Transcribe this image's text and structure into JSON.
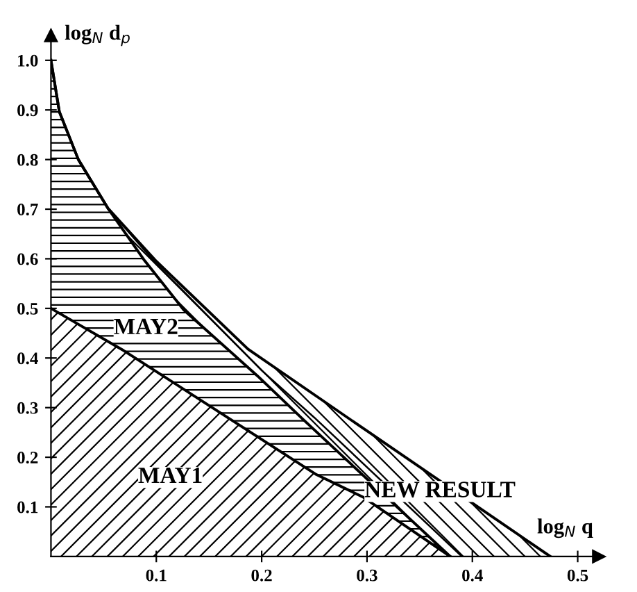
{
  "chart_data": {
    "type": "area",
    "xlabel": "log$_{N}$ q",
    "ylabel": "log$_{N}$ d$_{p}$",
    "xlim": [
      0,
      0.52
    ],
    "ylim": [
      0,
      1.05
    ],
    "xticks": [
      0.1,
      0.2,
      0.3,
      0.4,
      0.5
    ],
    "yticks": [
      0.1,
      0.2,
      0.3,
      0.4,
      0.5,
      0.6,
      0.7,
      0.8,
      0.9,
      {
        "value": 1.0,
        "label": "1.0"
      }
    ],
    "grid": false,
    "legend": false,
    "series": [
      {
        "name": "NEW RESULT",
        "color": "#000000",
        "x": [
          0,
          0.008,
          0.026,
          0.054,
          0.1,
          0.187,
          0.3,
          0.474
        ],
        "values": [
          1.0,
          0.896,
          0.8,
          0.702,
          0.595,
          0.418,
          0.253,
          0
        ]
      },
      {
        "type": "line",
        "color": "#000000",
        "x": [
          0.054,
          0.1,
          0.2,
          0.25,
          0.39
        ],
        "values": [
          0.702,
          0.59,
          0.375,
          0.28,
          0
        ]
      },
      {
        "name": "MAY2",
        "color": "#000000",
        "x": [
          0,
          0.008,
          0.026,
          0.054,
          0.089,
          0.126,
          0.196,
          0.239,
          0.379
        ],
        "values": [
          1.0,
          0.896,
          0.8,
          0.702,
          0.596,
          0.497,
          0.364,
          0.277,
          0
        ]
      },
      {
        "name": "MAY1",
        "color": "#000000",
        "x": [
          0,
          0.069,
          0.17,
          0.252,
          0.296,
          0.379
        ],
        "values": [
          0.5,
          0.415,
          0.277,
          0.165,
          0.12,
          0
        ]
      }
    ]
  }
}
